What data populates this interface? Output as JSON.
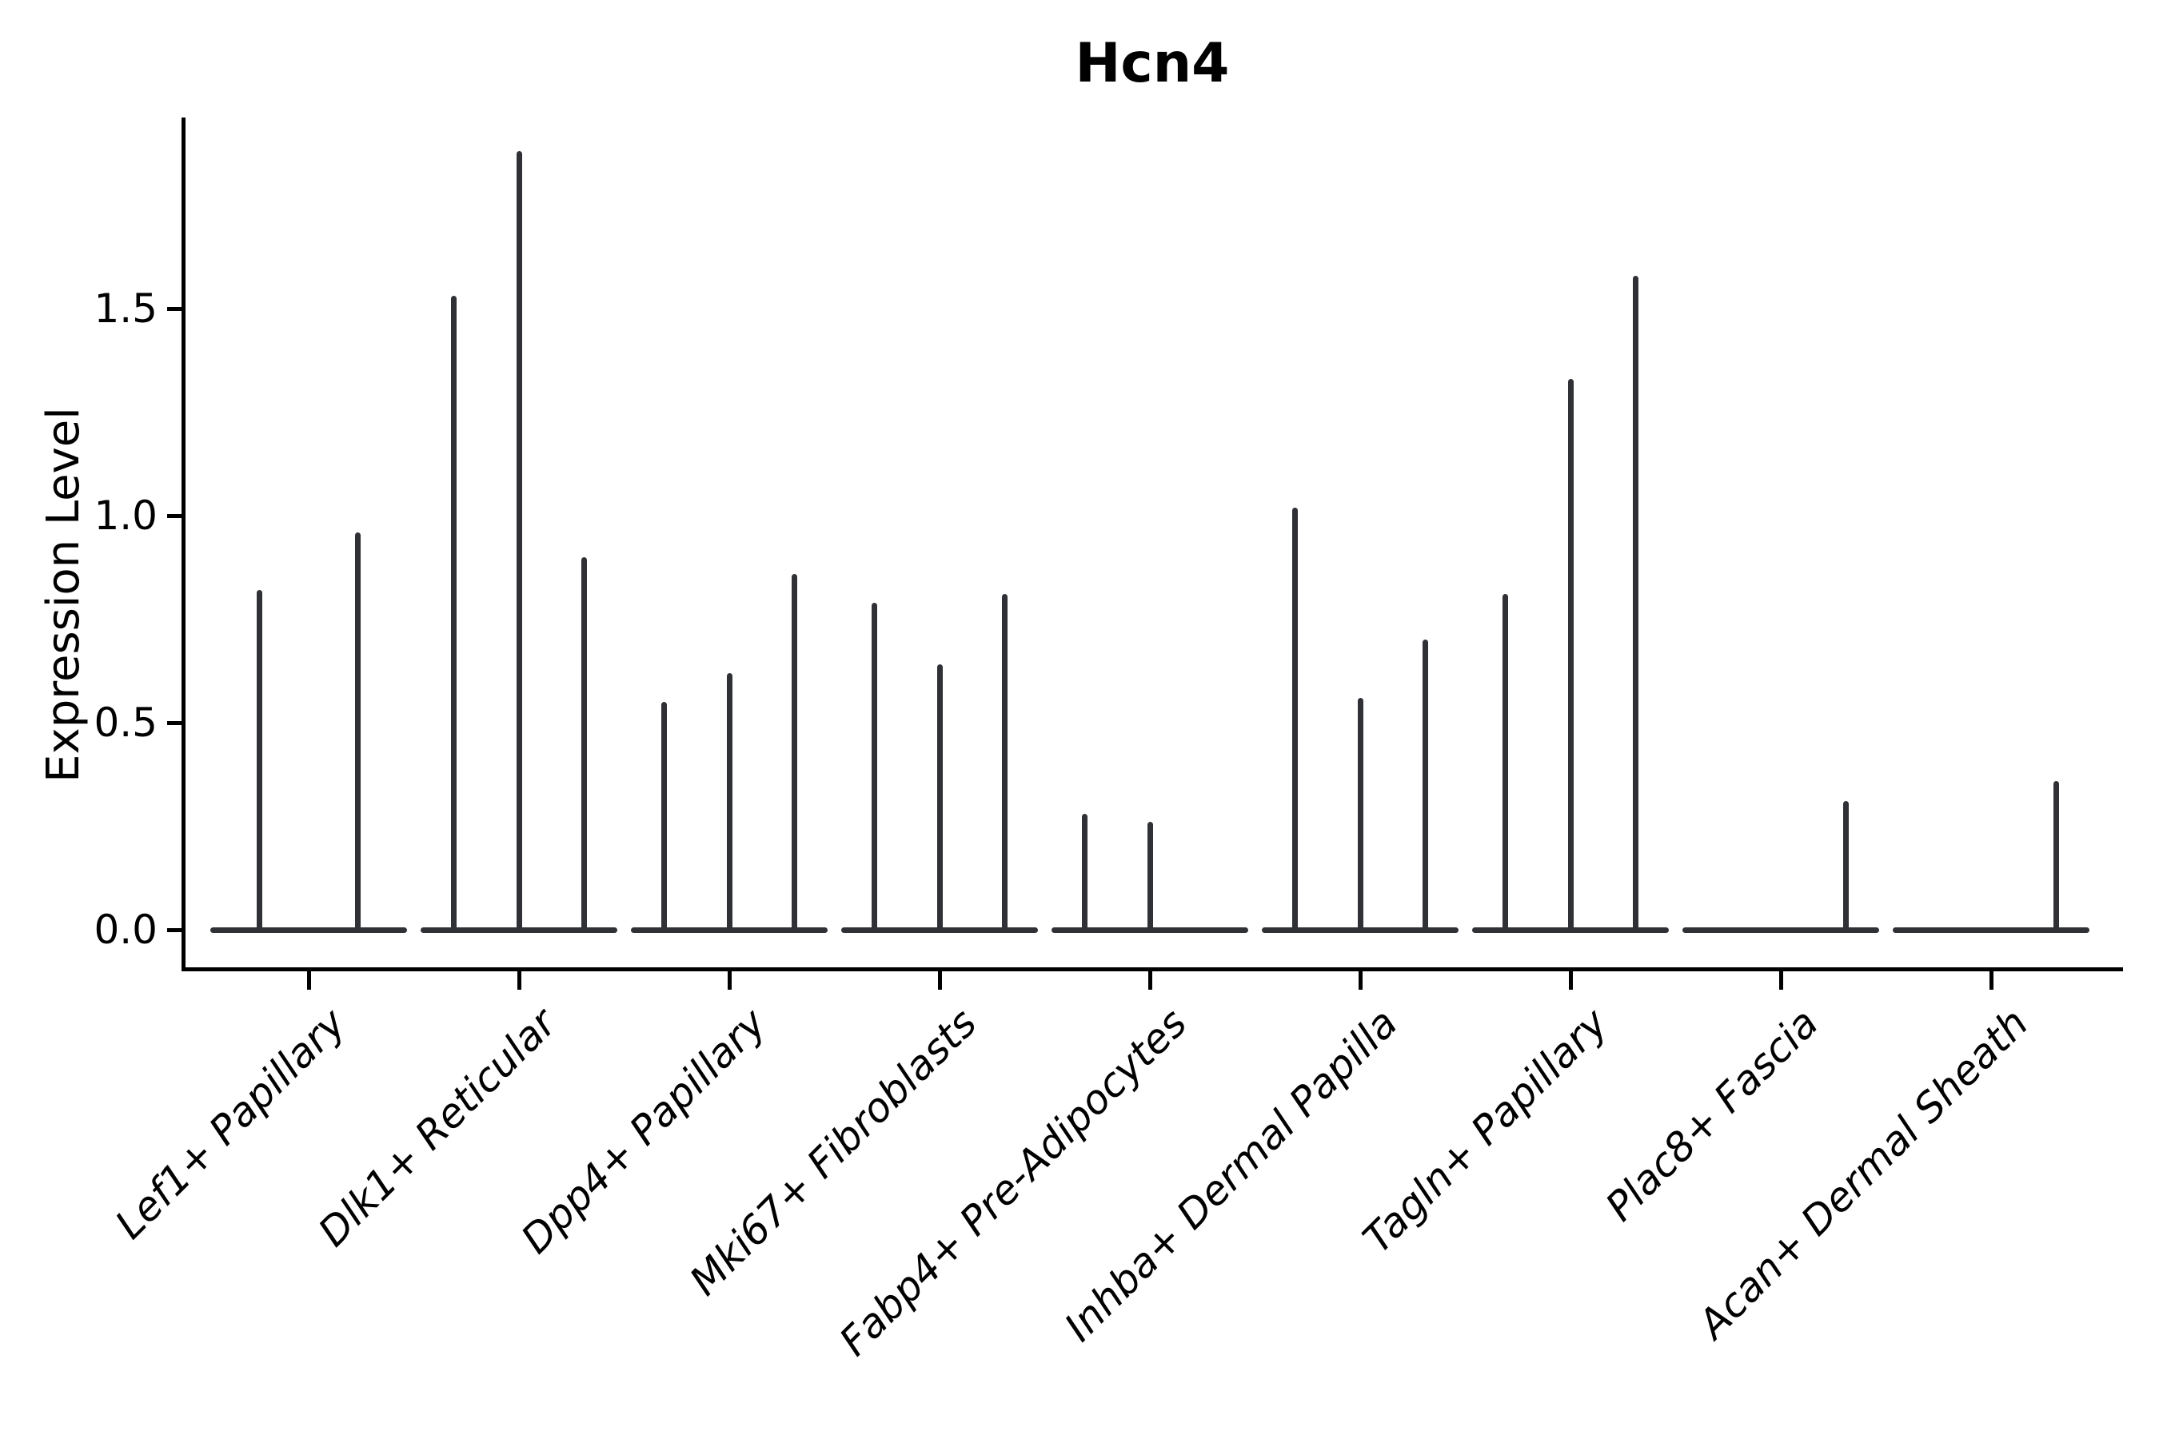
{
  "chart_data": {
    "type": "violin",
    "title": "Hcn4",
    "xlabel": "",
    "ylabel": "Expression Level",
    "ytick_labels": [
      "0.0",
      "0.5",
      "1.0",
      "1.5"
    ],
    "ytick_values": [
      0.0,
      0.5,
      1.0,
      1.5
    ],
    "ylim": [
      -0.09,
      1.96
    ],
    "grid": false,
    "legend_position": "none",
    "colors": {
      "violin": "#2f3136",
      "axis": "#000000",
      "text": "#000000",
      "background": "#ffffff"
    },
    "note": "Collapsed violins: wide flat base at expression 0 with a thin spike reaching the max expression value; groups may contain 2 or 3 violins (split sub-groups), flat max=0 violins show no spike.",
    "categories": [
      "Lef1+ Papillary",
      "Dlk1+ Reticular",
      "Dpp4+ Papillary",
      "Mki67+ Fibroblasts",
      "Fabp4+ Pre-Adipocytes",
      "Inhba+ Dermal Papilla",
      "Tagln+ Papillary",
      "Plac8+ Fascia",
      "Acan+ Dermal Sheath"
    ],
    "groups": [
      {
        "category": "Lef1+ Papillary",
        "violins": [
          {
            "x_frac": 0.25,
            "max": 0.82
          },
          {
            "x_frac": 0.75,
            "max": 0.96
          }
        ]
      },
      {
        "category": "Dlk1+ Reticular",
        "violins": [
          {
            "x_frac": 0.1667,
            "max": 1.53
          },
          {
            "x_frac": 0.5,
            "max": 1.88
          },
          {
            "x_frac": 0.8333,
            "max": 0.9
          }
        ]
      },
      {
        "category": "Dpp4+ Papillary",
        "violins": [
          {
            "x_frac": 0.1667,
            "max": 0.55
          },
          {
            "x_frac": 0.5,
            "max": 0.62
          },
          {
            "x_frac": 0.8333,
            "max": 0.86
          }
        ]
      },
      {
        "category": "Mki67+ Fibroblasts",
        "violins": [
          {
            "x_frac": 0.1667,
            "max": 0.79
          },
          {
            "x_frac": 0.5,
            "max": 0.64
          },
          {
            "x_frac": 0.8333,
            "max": 0.81
          }
        ]
      },
      {
        "category": "Fabp4+ Pre-Adipocytes",
        "violins": [
          {
            "x_frac": 0.1667,
            "max": 0.28
          },
          {
            "x_frac": 0.5,
            "max": 0.26
          },
          {
            "x_frac": 0.8333,
            "max": 0.0
          }
        ]
      },
      {
        "category": "Inhba+ Dermal Papilla",
        "violins": [
          {
            "x_frac": 0.1667,
            "max": 1.02
          },
          {
            "x_frac": 0.5,
            "max": 0.56
          },
          {
            "x_frac": 0.8333,
            "max": 0.7
          }
        ]
      },
      {
        "category": "Tagln+ Papillary",
        "violins": [
          {
            "x_frac": 0.1667,
            "max": 0.81
          },
          {
            "x_frac": 0.5,
            "max": 1.33
          },
          {
            "x_frac": 0.8333,
            "max": 1.58
          }
        ]
      },
      {
        "category": "Plac8+ Fascia",
        "violins": [
          {
            "x_frac": 0.1667,
            "max": 0.0
          },
          {
            "x_frac": 0.5,
            "max": 0.0
          },
          {
            "x_frac": 0.8333,
            "max": 0.31
          }
        ]
      },
      {
        "category": "Acan+ Dermal Sheath",
        "violins": [
          {
            "x_frac": 0.1667,
            "max": 0.0
          },
          {
            "x_frac": 0.5,
            "max": 0.0
          },
          {
            "x_frac": 0.8333,
            "max": 0.36
          }
        ]
      }
    ]
  }
}
